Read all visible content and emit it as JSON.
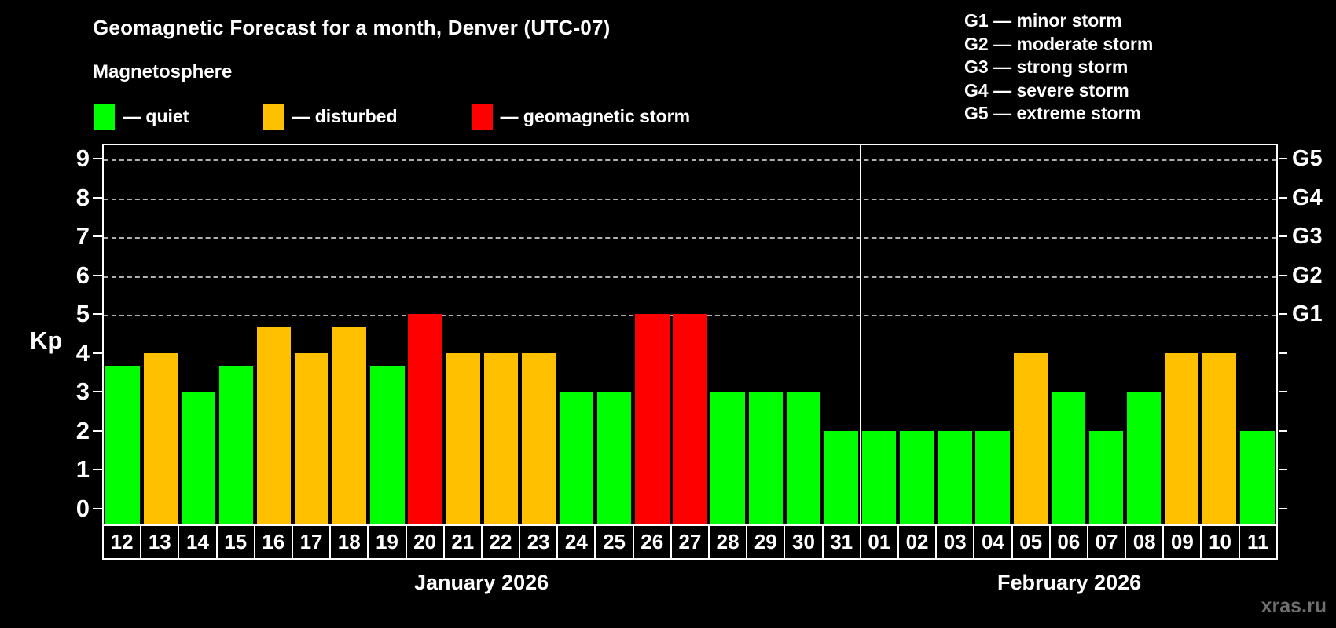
{
  "page": {
    "background": "#000000",
    "watermark": "xras.ru"
  },
  "header": {
    "title": "Geomagnetic Forecast for a month, Denver (UTC-07)",
    "subtitle": "Magnetosphere"
  },
  "legend": {
    "items": [
      {
        "status": "quiet",
        "label": "— quiet"
      },
      {
        "status": "disturbed",
        "label": "— disturbed"
      },
      {
        "status": "storm",
        "label": "— geomagnetic storm"
      }
    ]
  },
  "g_scale_legend": {
    "items": [
      "G1 — minor storm",
      "G2 — moderate storm",
      "G3 — strong storm",
      "G4 — severe storm",
      "G5 — extreme storm"
    ]
  },
  "chart_data": {
    "type": "bar",
    "title": "Geomagnetic Forecast for a month, Denver (UTC-07)",
    "xlabel": "",
    "ylabel": "Kp",
    "ylim": [
      0,
      9.4
    ],
    "yticks": [
      0,
      1,
      2,
      3,
      4,
      5,
      6,
      7,
      8,
      9
    ],
    "grid": "dashed horizontal at storm levels",
    "grid_levels_kp": [
      5,
      6,
      7,
      8,
      9
    ],
    "right_axis": [
      {
        "kp": 5,
        "label": "G1"
      },
      {
        "kp": 6,
        "label": "G2"
      },
      {
        "kp": 7,
        "label": "G3"
      },
      {
        "kp": 8,
        "label": "G4"
      },
      {
        "kp": 9,
        "label": "G5"
      }
    ],
    "status_colors": {
      "quiet": "#00ff00",
      "disturbed": "#ffc000",
      "storm": "#ff0000"
    },
    "months": [
      {
        "label": "January 2026",
        "days": 20
      },
      {
        "label": "February 2026",
        "days": 11
      }
    ],
    "bars": [
      {
        "day": "12",
        "kp": 3.67,
        "status": "quiet"
      },
      {
        "day": "13",
        "kp": 4.0,
        "status": "disturbed"
      },
      {
        "day": "14",
        "kp": 3.0,
        "status": "quiet"
      },
      {
        "day": "15",
        "kp": 3.67,
        "status": "quiet"
      },
      {
        "day": "16",
        "kp": 4.67,
        "status": "disturbed"
      },
      {
        "day": "17",
        "kp": 4.0,
        "status": "disturbed"
      },
      {
        "day": "18",
        "kp": 4.67,
        "status": "disturbed"
      },
      {
        "day": "19",
        "kp": 3.67,
        "status": "quiet"
      },
      {
        "day": "20",
        "kp": 5.0,
        "status": "storm"
      },
      {
        "day": "21",
        "kp": 4.0,
        "status": "disturbed"
      },
      {
        "day": "22",
        "kp": 4.0,
        "status": "disturbed"
      },
      {
        "day": "23",
        "kp": 4.0,
        "status": "disturbed"
      },
      {
        "day": "24",
        "kp": 3.0,
        "status": "quiet"
      },
      {
        "day": "25",
        "kp": 3.0,
        "status": "quiet"
      },
      {
        "day": "26",
        "kp": 5.0,
        "status": "storm"
      },
      {
        "day": "27",
        "kp": 5.0,
        "status": "storm"
      },
      {
        "day": "28",
        "kp": 3.0,
        "status": "quiet"
      },
      {
        "day": "29",
        "kp": 3.0,
        "status": "quiet"
      },
      {
        "day": "30",
        "kp": 3.0,
        "status": "quiet"
      },
      {
        "day": "31",
        "kp": 2.0,
        "status": "quiet"
      },
      {
        "day": "01",
        "kp": 2.0,
        "status": "quiet"
      },
      {
        "day": "02",
        "kp": 2.0,
        "status": "quiet"
      },
      {
        "day": "03",
        "kp": 2.0,
        "status": "quiet"
      },
      {
        "day": "04",
        "kp": 2.0,
        "status": "quiet"
      },
      {
        "day": "05",
        "kp": 4.0,
        "status": "disturbed"
      },
      {
        "day": "06",
        "kp": 3.0,
        "status": "quiet"
      },
      {
        "day": "07",
        "kp": 2.0,
        "status": "quiet"
      },
      {
        "day": "08",
        "kp": 3.0,
        "status": "quiet"
      },
      {
        "day": "09",
        "kp": 4.0,
        "status": "disturbed"
      },
      {
        "day": "10",
        "kp": 4.0,
        "status": "disturbed"
      },
      {
        "day": "11",
        "kp": 2.0,
        "status": "quiet"
      }
    ]
  }
}
